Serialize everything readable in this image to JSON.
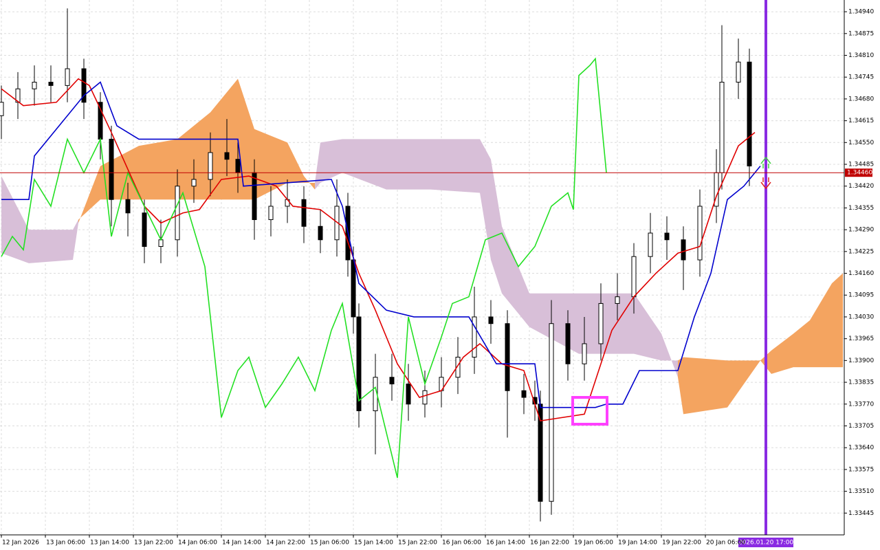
{
  "chart_data": {
    "type": "candlestick",
    "grid": true,
    "xlim": [
      0,
      153.25
    ],
    "ylim": [
      1.3338,
      1.34975
    ],
    "xticks": [
      {
        "value": 0,
        "label": "12 Jan 2026"
      },
      {
        "value": 8,
        "label": "13 Jan 06:00"
      },
      {
        "value": 16,
        "label": "13 Jan 14:00"
      },
      {
        "value": 24,
        "label": "13 Jan 22:00"
      },
      {
        "value": 32,
        "label": "14 Jan 06:00"
      },
      {
        "value": 40,
        "label": "14 Jan 14:00"
      },
      {
        "value": 48,
        "label": "14 Jan 22:00"
      },
      {
        "value": 56,
        "label": "15 Jan 06:00"
      },
      {
        "value": 64,
        "label": "15 Jan 14:00"
      },
      {
        "value": 72,
        "label": "15 Jan 22:00"
      },
      {
        "value": 80,
        "label": "16 Jan 06:00"
      },
      {
        "value": 88,
        "label": "16 Jan 14:00"
      },
      {
        "value": 96,
        "label": "16 Jan 22:00"
      },
      {
        "value": 104,
        "label": "19 Jan 06:00"
      },
      {
        "value": 112,
        "label": "19 Jan 14:00"
      },
      {
        "value": 120,
        "label": "19 Jan 22:00"
      },
      {
        "value": 128,
        "label": "20 Jan 06:00"
      }
    ],
    "yticks": [
      {
        "value": 1.3494,
        "label": "1.34940"
      },
      {
        "value": 1.34875,
        "label": "1.34875"
      },
      {
        "value": 1.3481,
        "label": "1.34810"
      },
      {
        "value": 1.34745,
        "label": "1.34745"
      },
      {
        "value": 1.3468,
        "label": "1.34680"
      },
      {
        "value": 1.34615,
        "label": "1.34615"
      },
      {
        "value": 1.3455,
        "label": "1.34550"
      },
      {
        "value": 1.34485,
        "label": "1.34485"
      },
      {
        "value": 1.3442,
        "label": "1.34420"
      },
      {
        "value": 1.34355,
        "label": "1.34355"
      },
      {
        "value": 1.3429,
        "label": "1.34290"
      },
      {
        "value": 1.34225,
        "label": "1.34225"
      },
      {
        "value": 1.3416,
        "label": "1.34160"
      },
      {
        "value": 1.34095,
        "label": "1.34095"
      },
      {
        "value": 1.3403,
        "label": "1.34030"
      },
      {
        "value": 1.33965,
        "label": "1.33965"
      },
      {
        "value": 1.339,
        "label": "1.33900"
      },
      {
        "value": 1.33835,
        "label": "1.33835"
      },
      {
        "value": 1.3377,
        "label": "1.33770"
      },
      {
        "value": 1.33705,
        "label": "1.33705"
      },
      {
        "value": 1.3364,
        "label": "1.33640"
      },
      {
        "value": 1.33575,
        "label": "1.33575"
      },
      {
        "value": 1.3351,
        "label": "1.33510"
      },
      {
        "value": 1.33445,
        "label": "1.33445"
      }
    ],
    "current_price": {
      "value": 1.3446,
      "label": "1.34460",
      "color": "#c00000"
    },
    "cursor_label": "2026.01.20 17:00",
    "candles": {
      "x": [
        0,
        3,
        6,
        9,
        12,
        15,
        18,
        20,
        23,
        26,
        29,
        32,
        35,
        38,
        41,
        43,
        46,
        49,
        52,
        55,
        58,
        61,
        63,
        64,
        65,
        68,
        71,
        74,
        77,
        80,
        83,
        86,
        89,
        92,
        95,
        97,
        98,
        100,
        103,
        106,
        109,
        112,
        115,
        118,
        121,
        124,
        127,
        130,
        131,
        134,
        136
      ],
      "open": [
        1.3463,
        1.3467,
        1.3471,
        1.3473,
        1.3472,
        1.3477,
        1.3467,
        1.3456,
        1.3438,
        1.3434,
        1.3424,
        1.3426,
        1.3442,
        1.3444,
        1.3452,
        1.345,
        1.3446,
        1.3432,
        1.3436,
        1.3438,
        1.343,
        1.3426,
        1.3436,
        1.342,
        1.3403,
        1.3375,
        1.3385,
        1.3383,
        1.3377,
        1.3381,
        1.3385,
        1.3391,
        1.3403,
        1.3401,
        1.3381,
        1.3379,
        1.3377,
        1.3348,
        1.3401,
        1.3389,
        1.3395,
        1.3407,
        1.3409,
        1.3421,
        1.3428,
        1.3426,
        1.342,
        1.3436,
        1.3446,
        1.3473,
        1.3479
      ],
      "high": [
        1.3472,
        1.3476,
        1.3478,
        1.3478,
        1.3495,
        1.348,
        1.347,
        1.346,
        1.3443,
        1.3438,
        1.3432,
        1.3447,
        1.345,
        1.3458,
        1.3462,
        1.3455,
        1.345,
        1.3442,
        1.3444,
        1.3442,
        1.3435,
        1.3444,
        1.344,
        1.3424,
        1.3407,
        1.3392,
        1.3392,
        1.3389,
        1.3387,
        1.3391,
        1.3397,
        1.3412,
        1.3408,
        1.3405,
        1.3386,
        1.3384,
        1.3381,
        1.3408,
        1.3405,
        1.3403,
        1.3413,
        1.3416,
        1.3425,
        1.3434,
        1.3433,
        1.343,
        1.3441,
        1.3453,
        1.349,
        1.3486,
        1.3483
      ],
      "low": [
        1.3456,
        1.3462,
        1.3466,
        1.3467,
        1.3467,
        1.3462,
        1.345,
        1.343,
        1.3427,
        1.3419,
        1.3419,
        1.3421,
        1.3437,
        1.3439,
        1.3445,
        1.344,
        1.3426,
        1.3427,
        1.3431,
        1.3425,
        1.3422,
        1.3421,
        1.3415,
        1.3398,
        1.337,
        1.3362,
        1.3378,
        1.3372,
        1.3373,
        1.3376,
        1.338,
        1.3386,
        1.3395,
        1.3367,
        1.3374,
        1.3372,
        1.3342,
        1.3344,
        1.3384,
        1.3384,
        1.339,
        1.3402,
        1.3404,
        1.3416,
        1.342,
        1.3411,
        1.3415,
        1.3431,
        1.3441,
        1.3468,
        1.3442
      ],
      "close": [
        1.3467,
        1.3471,
        1.3473,
        1.3472,
        1.3477,
        1.3467,
        1.3456,
        1.3438,
        1.3434,
        1.3424,
        1.3426,
        1.3442,
        1.3444,
        1.3452,
        1.345,
        1.3446,
        1.3432,
        1.3436,
        1.3438,
        1.343,
        1.3426,
        1.3436,
        1.342,
        1.3403,
        1.3375,
        1.3385,
        1.3383,
        1.3377,
        1.3381,
        1.3385,
        1.3391,
        1.3403,
        1.3401,
        1.3381,
        1.3379,
        1.3377,
        1.3348,
        1.3401,
        1.3389,
        1.3395,
        1.3407,
        1.3409,
        1.3421,
        1.3428,
        1.3426,
        1.342,
        1.3436,
        1.3446,
        1.3473,
        1.3479,
        1.3448
      ],
      "up_color": "#ffffff",
      "down_color": "#000000"
    },
    "cloud": {
      "x": [
        0,
        5,
        13,
        14,
        18,
        25,
        32,
        38,
        43,
        46,
        52,
        55,
        57,
        58,
        62,
        70,
        78,
        87,
        89,
        91,
        96,
        105,
        115,
        120,
        123,
        124,
        132,
        138,
        140,
        144,
        147,
        151,
        153
      ],
      "span_a": [
        1.3422,
        1.3419,
        1.342,
        1.3431,
        1.3448,
        1.3454,
        1.3456,
        1.3464,
        1.3474,
        1.3459,
        1.3455,
        1.3445,
        1.3441,
        1.3443,
        1.3446,
        1.3441,
        1.3441,
        1.344,
        1.342,
        1.341,
        1.34,
        1.3392,
        1.3392,
        1.339,
        1.339,
        1.3391,
        1.339,
        1.339,
        1.3393,
        1.3398,
        1.3402,
        1.3413,
        1.3416
      ],
      "span_b": [
        1.3445,
        1.3429,
        1.3429,
        1.3432,
        1.3438,
        1.3438,
        1.3438,
        1.3438,
        1.3438,
        1.3438,
        1.3443,
        1.3443,
        1.3443,
        1.3455,
        1.3456,
        1.3456,
        1.3456,
        1.3456,
        1.345,
        1.343,
        1.341,
        1.341,
        1.341,
        1.3398,
        1.3385,
        1.3374,
        1.3376,
        1.339,
        1.3386,
        1.3388,
        1.3388,
        1.3388,
        1.3388
      ],
      "up_color": "#f4a460",
      "down_color": "#d8bfd8"
    },
    "lines": [
      {
        "color": "#e00000",
        "x": [
          0,
          4,
          10,
          14,
          16,
          20,
          26,
          29,
          33,
          36,
          40,
          45,
          50,
          53,
          58,
          62,
          65,
          68,
          72,
          76,
          80,
          84,
          87,
          91,
          95,
          98,
          106,
          108,
          111,
          115,
          119,
          123,
          127,
          130,
          134,
          137
        ],
        "values": [
          1.3471,
          1.3466,
          1.3467,
          1.3474,
          1.3472,
          1.3458,
          1.3436,
          1.3431,
          1.3434,
          1.3435,
          1.3444,
          1.3445,
          1.3442,
          1.3436,
          1.3435,
          1.343,
          1.3416,
          1.3405,
          1.3389,
          1.3379,
          1.3381,
          1.3391,
          1.3395,
          1.3389,
          1.3387,
          1.3372,
          1.3374,
          1.3384,
          1.3399,
          1.3409,
          1.3416,
          1.3422,
          1.3424,
          1.3439,
          1.3454,
          1.3458
        ]
      },
      {
        "color": "#0000cd",
        "x": [
          0,
          5,
          6,
          15,
          18,
          21,
          25,
          43,
          44,
          60,
          62,
          65,
          70,
          75,
          85,
          90,
          97,
          98,
          108,
          110,
          113,
          116,
          123,
          126,
          129,
          132,
          135,
          138
        ],
        "values": [
          1.3438,
          1.3438,
          1.3451,
          1.3469,
          1.3473,
          1.346,
          1.3456,
          1.3456,
          1.3442,
          1.3444,
          1.3436,
          1.3413,
          1.3405,
          1.3403,
          1.3403,
          1.3389,
          1.3389,
          1.3376,
          1.3376,
          1.3377,
          1.3377,
          1.3387,
          1.3387,
          1.3403,
          1.3416,
          1.3438,
          1.3442,
          1.3448
        ]
      },
      {
        "color": "#22e022",
        "x": [
          0,
          2,
          4,
          6,
          9,
          12,
          15,
          18,
          20,
          23,
          26,
          29,
          33,
          37,
          40,
          43,
          45,
          48,
          51,
          54,
          57,
          60,
          62,
          65,
          68,
          72,
          74,
          77,
          80,
          82,
          85,
          88,
          91,
          94,
          97,
          100,
          103,
          104,
          105,
          107,
          108,
          110
        ],
        "values": [
          1.3421,
          1.3427,
          1.3423,
          1.3444,
          1.3436,
          1.3456,
          1.3446,
          1.3456,
          1.3427,
          1.3446,
          1.3436,
          1.3426,
          1.344,
          1.3418,
          1.3373,
          1.3387,
          1.3391,
          1.3376,
          1.3383,
          1.3391,
          1.3381,
          1.3399,
          1.3407,
          1.3378,
          1.3382,
          1.3355,
          1.3403,
          1.3383,
          1.3397,
          1.3407,
          1.3409,
          1.3426,
          1.3428,
          1.3418,
          1.3424,
          1.3436,
          1.344,
          1.3435,
          1.3475,
          1.3478,
          1.348,
          1.3446
        ]
      }
    ]
  }
}
